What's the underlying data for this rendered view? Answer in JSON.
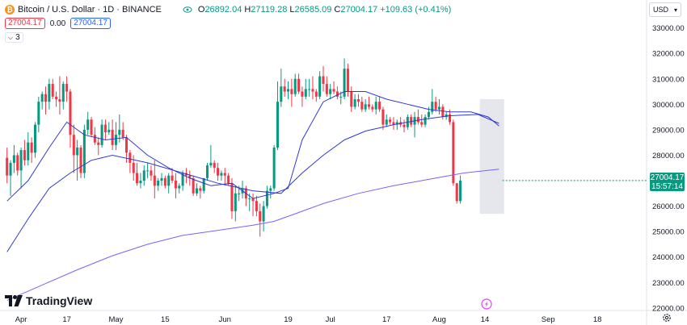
{
  "header": {
    "symbol_title": "Bitcoin / U.S. Dollar · 1D · BINANCE",
    "coin_glyph": "₿",
    "ohlc": {
      "open_label": "O",
      "open": "26892.04",
      "high_label": "H",
      "high": "27119.28",
      "low_label": "L",
      "low": "26585.09",
      "close_label": "C",
      "close": "27004.17",
      "change": "+109.63 (+0.41%)"
    },
    "sell_price": "27004.17",
    "spread": "0.00",
    "buy_price": "27004.17",
    "indicators_collapsed_count": "3"
  },
  "currency_select": {
    "value": "USD"
  },
  "branding": {
    "logo_text": "TradingView"
  },
  "last_price_tag": {
    "price": "27004.17",
    "countdown": "15:57:14"
  },
  "colors": {
    "up": "#089981",
    "down": "#f23645",
    "ma_line": "#7b61ff",
    "ma_line_short": "#2f3ad1"
  },
  "chart_data": {
    "type": "candlestick",
    "ylim": [
      21900,
      33400
    ],
    "y_ticks": [
      22000,
      23000,
      24000,
      25000,
      26000,
      27000,
      28000,
      29000,
      30000,
      31000,
      32000,
      33000
    ],
    "y_tick_labels": [
      "22000.00",
      "23000.00",
      "24000.00",
      "25000.00",
      "26000.00",
      "27000.00",
      "28000.00",
      "29000.00",
      "30000.00",
      "31000.00",
      "32000.00",
      "33000.00"
    ],
    "x_labels": [
      {
        "day": 4,
        "label": "Apr"
      },
      {
        "day": 17,
        "label": "17"
      },
      {
        "day": 31,
        "label": "May"
      },
      {
        "day": 45,
        "label": "15"
      },
      {
        "day": 62,
        "label": "Jun"
      },
      {
        "day": 80,
        "label": "19"
      },
      {
        "day": 92,
        "label": "Jul"
      },
      {
        "day": 108,
        "label": "17"
      },
      {
        "day": 123,
        "label": "Aug"
      },
      {
        "day": 136,
        "label": "14"
      },
      {
        "day": 154,
        "label": "Sep"
      },
      {
        "day": 168,
        "label": "18"
      }
    ],
    "x_range": [
      -2,
      182
    ],
    "highlight_range": {
      "from_day": 135,
      "to_day": 141,
      "price_from": 25700,
      "price_to": 30200
    },
    "candles": [
      [
        27900,
        28300,
        26900,
        27200
      ],
      [
        27200,
        27800,
        26400,
        27700
      ],
      [
        27700,
        28400,
        27300,
        28000
      ],
      [
        28000,
        28100,
        27200,
        27400
      ],
      [
        27400,
        28300,
        26700,
        28200
      ],
      [
        28200,
        28600,
        27600,
        27800
      ],
      [
        27800,
        28900,
        27600,
        28500
      ],
      [
        28500,
        28700,
        27700,
        28100
      ],
      [
        28100,
        29300,
        27900,
        29200
      ],
      [
        29200,
        30300,
        28900,
        30100
      ],
      [
        30100,
        30500,
        29800,
        30400
      ],
      [
        30400,
        30700,
        29600,
        30100
      ],
      [
        30100,
        31000,
        29800,
        30800
      ],
      [
        30800,
        31000,
        30200,
        30300
      ],
      [
        30300,
        30500,
        29900,
        30200
      ],
      [
        30200,
        31100,
        29600,
        30100
      ],
      [
        30100,
        30900,
        29800,
        30800
      ],
      [
        30800,
        31100,
        30100,
        30500
      ],
      [
        30500,
        30600,
        28300,
        28800
      ],
      [
        28800,
        29200,
        27300,
        28000
      ],
      [
        28000,
        28600,
        27000,
        28300
      ],
      [
        28300,
        28400,
        27100,
        27300
      ],
      [
        27300,
        29200,
        27100,
        29000
      ],
      [
        29000,
        29700,
        28800,
        29400
      ],
      [
        29400,
        29500,
        28700,
        28800
      ],
      [
        28800,
        29100,
        28400,
        28500
      ],
      [
        28500,
        28700,
        28000,
        28400
      ],
      [
        28400,
        29400,
        28300,
        29200
      ],
      [
        29200,
        29400,
        28600,
        28900
      ],
      [
        28900,
        29300,
        28800,
        29000
      ],
      [
        29000,
        29400,
        28200,
        28400
      ],
      [
        28400,
        29300,
        28200,
        28800
      ],
      [
        28800,
        29600,
        28500,
        29000
      ],
      [
        29000,
        29300,
        28600,
        28700
      ],
      [
        28700,
        28800,
        27700,
        28100
      ],
      [
        28100,
        28200,
        27300,
        27700
      ],
      [
        27700,
        28000,
        27000,
        27300
      ],
      [
        27300,
        27700,
        26800,
        26900
      ],
      [
        26900,
        27300,
        26700,
        27000
      ],
      [
        27000,
        27600,
        26800,
        27400
      ],
      [
        27400,
        27700,
        27100,
        27400
      ],
      [
        27400,
        27600,
        27000,
        27200
      ],
      [
        27200,
        27800,
        26300,
        26800
      ],
      [
        26800,
        27100,
        26600,
        27000
      ],
      [
        27000,
        27300,
        26800,
        27100
      ],
      [
        27100,
        27200,
        26700,
        26800
      ],
      [
        26800,
        27300,
        26500,
        27200
      ],
      [
        27200,
        27500,
        26900,
        27000
      ],
      [
        27000,
        27300,
        26300,
        26700
      ],
      [
        26700,
        26900,
        26500,
        26800
      ],
      [
        26800,
        27400,
        26600,
        27300
      ],
      [
        27300,
        27500,
        26900,
        27200
      ],
      [
        27200,
        27400,
        26800,
        27100
      ],
      [
        27100,
        27200,
        26400,
        26500
      ],
      [
        26500,
        26900,
        26400,
        26700
      ],
      [
        26700,
        26800,
        26300,
        26600
      ],
      [
        26600,
        27100,
        26500,
        27100
      ],
      [
        27100,
        27700,
        27000,
        27600
      ],
      [
        27600,
        28400,
        27500,
        27700
      ],
      [
        27700,
        27800,
        27300,
        27500
      ],
      [
        27500,
        27700,
        27000,
        27200
      ],
      [
        27200,
        27400,
        27000,
        27300
      ],
      [
        27300,
        27500,
        26800,
        27200
      ],
      [
        27200,
        27300,
        26800,
        26900
      ],
      [
        26900,
        27100,
        25500,
        25800
      ],
      [
        25800,
        26800,
        25400,
        26500
      ],
      [
        26500,
        26800,
        26200,
        26500
      ],
      [
        26500,
        27000,
        26300,
        26700
      ],
      [
        26700,
        26800,
        26000,
        26300
      ],
      [
        26300,
        26500,
        25800,
        26300
      ],
      [
        26300,
        26500,
        25600,
        26200
      ],
      [
        26200,
        26400,
        25600,
        25800
      ],
      [
        25800,
        26100,
        24800,
        25400
      ],
      [
        25400,
        26200,
        25000,
        26000
      ],
      [
        26000,
        26800,
        25900,
        26600
      ],
      [
        26600,
        26800,
        26300,
        26700
      ],
      [
        26700,
        28400,
        26600,
        28300
      ],
      [
        28300,
        30900,
        28200,
        30100
      ],
      [
        30100,
        31400,
        29900,
        30700
      ],
      [
        30700,
        31000,
        30300,
        30500
      ],
      [
        30500,
        30900,
        30200,
        30600
      ],
      [
        30600,
        31000,
        29900,
        30400
      ],
      [
        30400,
        31200,
        30300,
        31000
      ],
      [
        31000,
        31200,
        30400,
        30500
      ],
      [
        30500,
        30700,
        29900,
        30300
      ],
      [
        30300,
        31000,
        30200,
        30600
      ],
      [
        30600,
        31000,
        30300,
        30600
      ],
      [
        30600,
        31100,
        30200,
        30500
      ],
      [
        30500,
        30600,
        30100,
        30300
      ],
      [
        30300,
        31300,
        30200,
        31100
      ],
      [
        31100,
        31500,
        30500,
        30800
      ],
      [
        30800,
        31100,
        30300,
        30400
      ],
      [
        30400,
        30800,
        30200,
        30600
      ],
      [
        30600,
        30900,
        30400,
        30500
      ],
      [
        30500,
        30700,
        30200,
        30300
      ],
      [
        30300,
        30500,
        30000,
        30300
      ],
      [
        30300,
        31800,
        30200,
        31400
      ],
      [
        31400,
        31600,
        30300,
        30500
      ],
      [
        30500,
        30700,
        29700,
        29900
      ],
      [
        29900,
        30400,
        29800,
        30200
      ],
      [
        30200,
        30400,
        29900,
        30100
      ],
      [
        30100,
        30300,
        29700,
        29800
      ],
      [
        29800,
        30200,
        29700,
        30000
      ],
      [
        30000,
        30300,
        29800,
        29900
      ],
      [
        29900,
        30000,
        29700,
        29800
      ],
      [
        29800,
        30300,
        29600,
        30100
      ],
      [
        30100,
        30300,
        29700,
        29800
      ],
      [
        29800,
        29900,
        29000,
        29200
      ],
      [
        29200,
        29600,
        29100,
        29400
      ],
      [
        29400,
        29500,
        29200,
        29300
      ],
      [
        29300,
        29500,
        29000,
        29200
      ],
      [
        29200,
        29400,
        29000,
        29300
      ],
      [
        29300,
        29500,
        29100,
        29200
      ],
      [
        29200,
        29400,
        28900,
        29100
      ],
      [
        29100,
        29600,
        29000,
        29500
      ],
      [
        29500,
        29600,
        29100,
        29200
      ],
      [
        29200,
        29700,
        28700,
        29500
      ],
      [
        29500,
        29800,
        29200,
        29300
      ],
      [
        29300,
        29600,
        29100,
        29200
      ],
      [
        29200,
        29600,
        29100,
        29500
      ],
      [
        29500,
        29900,
        29400,
        29700
      ],
      [
        29700,
        30600,
        29600,
        30100
      ],
      [
        30100,
        30300,
        29700,
        29800
      ],
      [
        29800,
        30200,
        29600,
        29900
      ],
      [
        29900,
        30000,
        29400,
        29500
      ],
      [
        29500,
        29700,
        29400,
        29600
      ],
      [
        29600,
        29800,
        29200,
        29300
      ],
      [
        29300,
        29400,
        26800,
        26900
      ],
      [
        26900,
        26900,
        26100,
        26200
      ],
      [
        26200,
        27200,
        26100,
        27000
      ]
    ],
    "candle_start_day": 0,
    "ma_long": [
      [
        0,
        22300
      ],
      [
        10,
        22900
      ],
      [
        20,
        23500
      ],
      [
        30,
        24050
      ],
      [
        40,
        24500
      ],
      [
        50,
        24850
      ],
      [
        60,
        25050
      ],
      [
        70,
        25250
      ],
      [
        76,
        25400
      ],
      [
        82,
        25700
      ],
      [
        90,
        26100
      ],
      [
        100,
        26500
      ],
      [
        110,
        26800
      ],
      [
        120,
        27050
      ],
      [
        130,
        27300
      ],
      [
        140,
        27450
      ]
    ],
    "ma_mid": [
      [
        0,
        24200
      ],
      [
        6,
        25500
      ],
      [
        12,
        26700
      ],
      [
        18,
        27300
      ],
      [
        24,
        27800
      ],
      [
        30,
        28000
      ],
      [
        40,
        27700
      ],
      [
        50,
        27300
      ],
      [
        60,
        26900
      ],
      [
        70,
        26600
      ],
      [
        78,
        26500
      ],
      [
        84,
        27300
      ],
      [
        90,
        28000
      ],
      [
        96,
        28600
      ],
      [
        102,
        28950
      ],
      [
        110,
        29200
      ],
      [
        118,
        29400
      ],
      [
        126,
        29550
      ],
      [
        134,
        29600
      ],
      [
        140,
        29250
      ]
    ],
    "ma_short": [
      [
        0,
        26200
      ],
      [
        6,
        27000
      ],
      [
        12,
        28300
      ],
      [
        17,
        29300
      ],
      [
        22,
        28800
      ],
      [
        28,
        28600
      ],
      [
        34,
        28700
      ],
      [
        40,
        28000
      ],
      [
        46,
        27500
      ],
      [
        52,
        27100
      ],
      [
        58,
        26800
      ],
      [
        64,
        26900
      ],
      [
        70,
        26300
      ],
      [
        76,
        26500
      ],
      [
        80,
        26700
      ],
      [
        84,
        28600
      ],
      [
        90,
        30100
      ],
      [
        96,
        30500
      ],
      [
        102,
        30500
      ],
      [
        108,
        30200
      ],
      [
        114,
        30000
      ],
      [
        120,
        29800
      ],
      [
        126,
        29700
      ],
      [
        132,
        29700
      ],
      [
        137,
        29500
      ],
      [
        140,
        29150
      ]
    ]
  }
}
